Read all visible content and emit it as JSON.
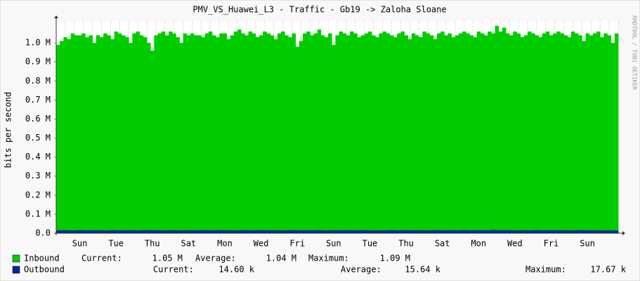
{
  "chart_data": {
    "type": "area",
    "title": "PMV_VS_Huawei_L3 - Traffic - Gb19 -> Zaloha Sloane",
    "ylabel": "bits per second",
    "watermark": "RRDTOOL / TOBI OETIKER",
    "ylim": [
      0,
      1100000
    ],
    "yticks": [
      {
        "value": 0,
        "label": "0.0"
      },
      {
        "value": 100000,
        "label": "0.1 M"
      },
      {
        "value": 200000,
        "label": "0.2 M"
      },
      {
        "value": 300000,
        "label": "0.3 M"
      },
      {
        "value": 400000,
        "label": "0.4 M"
      },
      {
        "value": 500000,
        "label": "0.5 M"
      },
      {
        "value": 600000,
        "label": "0.6 M"
      },
      {
        "value": 700000,
        "label": "0.7 M"
      },
      {
        "value": 800000,
        "label": "0.8 M"
      },
      {
        "value": 900000,
        "label": "0.9 M"
      },
      {
        "value": 1000000,
        "label": "1.0 M"
      }
    ],
    "grid": true,
    "categories": [
      null,
      null,
      null,
      null,
      null,
      null,
      "Sun",
      null,
      null,
      null,
      null,
      null,
      null,
      null,
      null,
      null,
      "Tue",
      null,
      null,
      null,
      null,
      null,
      null,
      null,
      null,
      null,
      "Thu",
      null,
      null,
      null,
      null,
      null,
      null,
      null,
      null,
      null,
      "Sat",
      null,
      null,
      null,
      null,
      null,
      null,
      null,
      null,
      null,
      "Mon",
      null,
      null,
      null,
      null,
      null,
      null,
      null,
      null,
      null,
      "Wed",
      null,
      null,
      null,
      null,
      null,
      null,
      null,
      null,
      null,
      "Fri",
      null,
      null,
      null,
      null,
      null,
      null,
      null,
      null,
      null,
      "Sun",
      null,
      null,
      null,
      null,
      null,
      null,
      null,
      null,
      null,
      "Tue",
      null,
      null,
      null,
      null,
      null,
      null,
      null,
      null,
      null,
      "Thu",
      null,
      null,
      null,
      null,
      null,
      null,
      null,
      null,
      null,
      "Sat",
      null,
      null,
      null,
      null,
      null,
      null,
      null,
      null,
      null,
      "Mon",
      null,
      null,
      null,
      null,
      null,
      null,
      null,
      null,
      null,
      "Wed",
      null,
      null,
      null,
      null,
      null,
      null,
      null,
      null,
      null,
      "Fri",
      null,
      null,
      null,
      null,
      null,
      null,
      null,
      null,
      null,
      "Sun",
      null,
      null,
      null,
      null,
      null,
      null,
      null,
      null
    ],
    "stat_labels": [
      "Current:",
      "Average:",
      "Maximum:"
    ],
    "series": [
      {
        "name": "Inbound",
        "color": "#00cc00",
        "stats": [
          "1.05 M",
          "1.04 M",
          "1.09 M"
        ],
        "values": [
          990000,
          1010000,
          1030000,
          1020000,
          1050000,
          1040000,
          1040000,
          1050000,
          1030000,
          1040000,
          1000000,
          1040000,
          1030000,
          1050000,
          1040000,
          1020000,
          1060000,
          1050000,
          1040000,
          1030000,
          1000000,
          1050000,
          1060000,
          1040000,
          1030000,
          1000000,
          960000,
          1040000,
          1050000,
          1060000,
          1040000,
          1060000,
          1050000,
          1030000,
          1000000,
          1050000,
          1040000,
          1050000,
          1040000,
          1040000,
          1030000,
          1050000,
          1060000,
          1040000,
          1030000,
          1050000,
          1050000,
          1020000,
          1040000,
          1060000,
          1070000,
          1050000,
          1040000,
          1060000,
          1050000,
          1030000,
          1040000,
          1060000,
          1050000,
          1040000,
          1020000,
          1050000,
          1060000,
          1040000,
          1030000,
          1050000,
          980000,
          1010000,
          1050000,
          1060000,
          1040000,
          1050000,
          1070000,
          1040000,
          1030000,
          1050000,
          990000,
          1040000,
          1060000,
          1050000,
          1040000,
          1060000,
          1050000,
          1030000,
          1040000,
          1050000,
          1060000,
          1040000,
          1030000,
          1050000,
          1060000,
          1050000,
          1040000,
          1030000,
          1050000,
          1060000,
          1040000,
          1020000,
          1050000,
          1040000,
          1030000,
          1060000,
          1050000,
          1040000,
          1020000,
          1050000,
          1060000,
          1040000,
          1050000,
          1030000,
          1040000,
          1050000,
          1060000,
          1050000,
          1040000,
          1030000,
          1060000,
          1050000,
          1040000,
          1060000,
          1050000,
          1090000,
          1060000,
          1080000,
          1050000,
          1040000,
          1060000,
          1050000,
          1030000,
          1040000,
          1060000,
          1050000,
          1040000,
          1030000,
          1050000,
          1060000,
          1040000,
          1050000,
          1060000,
          1050000,
          1040000,
          1030000,
          1060000,
          1050000,
          1040000,
          1010000,
          1050000,
          1040000,
          1050000,
          1060000,
          1030000,
          1050000,
          1040000,
          1000000,
          1050000
        ]
      },
      {
        "name": "Outbound",
        "color": "#002a97",
        "stats": [
          "14.60 k",
          "15.64 k",
          "17.67 k"
        ],
        "values": [
          15200,
          15800,
          16100,
          15400,
          14900,
          15600,
          16300,
          15900,
          15100,
          15500,
          15700,
          16000,
          15300,
          14800,
          15600,
          16200,
          15800,
          15000,
          15400,
          15900,
          16100,
          15500,
          14900,
          15700,
          16400,
          15800,
          15200,
          15600,
          15900,
          15300,
          15000,
          15800,
          16200,
          15600,
          15100,
          15500,
          16000,
          15700,
          15200,
          15800,
          16300,
          15400,
          14900,
          15600,
          16100,
          15800,
          15300,
          15700,
          16000,
          15500,
          15100,
          15900,
          16400,
          15600,
          15000,
          15500,
          16200,
          15800,
          15300,
          15700,
          15900,
          15400,
          15000,
          15800,
          16300,
          15700,
          15200,
          15600,
          16000,
          15500,
          15100,
          15800,
          16200,
          15600,
          15000,
          15400,
          16100,
          15900,
          15300,
          15700,
          16000,
          15500,
          15100,
          15800,
          16400,
          15700,
          15200,
          15600,
          15900,
          15400,
          15000,
          15800,
          16300,
          15600,
          15100,
          15500,
          16100,
          15800,
          15200,
          15700,
          16000,
          15400,
          15000,
          15900,
          16200,
          15700,
          15300,
          15600,
          16100,
          15500,
          15100,
          15800,
          16300,
          15700,
          15200,
          15600,
          16000,
          15800,
          15300,
          15700,
          17670,
          16400,
          15500,
          15900,
          16200,
          15600,
          15100,
          15700,
          16000,
          15400,
          15000,
          15800,
          16300,
          15600,
          15200,
          15500,
          16100,
          15900,
          15300,
          15700,
          16000,
          15500,
          15100,
          15800,
          16200,
          15600,
          15000,
          15500,
          15900,
          15300,
          15000,
          15400,
          15100,
          14800,
          14600
        ]
      }
    ]
  }
}
